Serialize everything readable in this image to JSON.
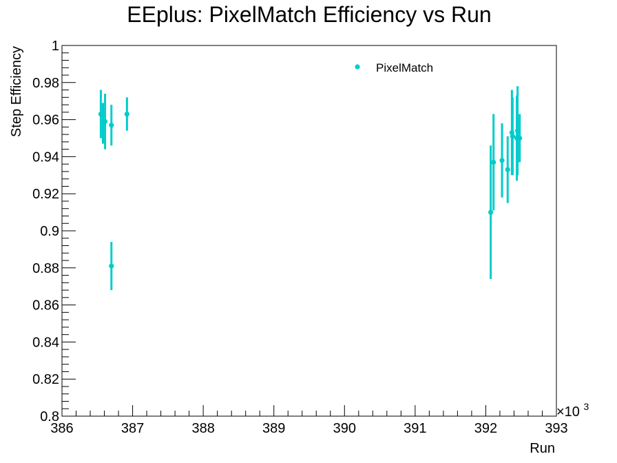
{
  "chart_data": {
    "type": "scatter",
    "title": "EEplus: PixelMatch Efficiency vs Run",
    "xlabel": "Run",
    "ylabel": "Step Efficiency",
    "x_multiplier_label": "×10",
    "x_multiplier_exp": "3",
    "xlim": [
      386,
      393
    ],
    "ylim": [
      0.8,
      1.0
    ],
    "x_ticks": [
      386,
      387,
      388,
      389,
      390,
      391,
      392,
      393
    ],
    "x_tick_labels": [
      "386",
      "387",
      "388",
      "389",
      "390",
      "391",
      "392",
      "393"
    ],
    "y_ticks": [
      0.8,
      0.82,
      0.84,
      0.86,
      0.88,
      0.9,
      0.92,
      0.94,
      0.96,
      0.98,
      1.0
    ],
    "y_tick_labels": [
      "0.8",
      "0.82",
      "0.84",
      "0.86",
      "0.88",
      "0.9",
      "0.92",
      "0.94",
      "0.96",
      "0.98",
      "1"
    ],
    "grid": false,
    "legend_position": "top-right",
    "series": [
      {
        "name": "PixelMatch",
        "color": "#00cccc",
        "points": [
          {
            "x": 386.55,
            "y": 0.963,
            "err": 0.013
          },
          {
            "x": 386.58,
            "y": 0.958,
            "err": 0.011
          },
          {
            "x": 386.61,
            "y": 0.959,
            "err": 0.015
          },
          {
            "x": 386.7,
            "y": 0.957,
            "err": 0.011
          },
          {
            "x": 386.7,
            "y": 0.881,
            "err": 0.013
          },
          {
            "x": 386.92,
            "y": 0.963,
            "err": 0.009
          },
          {
            "x": 392.07,
            "y": 0.91,
            "err": 0.036
          },
          {
            "x": 392.11,
            "y": 0.937,
            "err": 0.026
          },
          {
            "x": 392.23,
            "y": 0.938,
            "err": 0.02
          },
          {
            "x": 392.31,
            "y": 0.933,
            "err": 0.018
          },
          {
            "x": 392.37,
            "y": 0.953,
            "err": 0.023
          },
          {
            "x": 392.38,
            "y": 0.951,
            "err": 0.021
          },
          {
            "x": 392.44,
            "y": 0.95,
            "err": 0.023
          },
          {
            "x": 392.45,
            "y": 0.954,
            "err": 0.024
          },
          {
            "x": 392.48,
            "y": 0.95,
            "err": 0.013
          }
        ]
      }
    ]
  }
}
